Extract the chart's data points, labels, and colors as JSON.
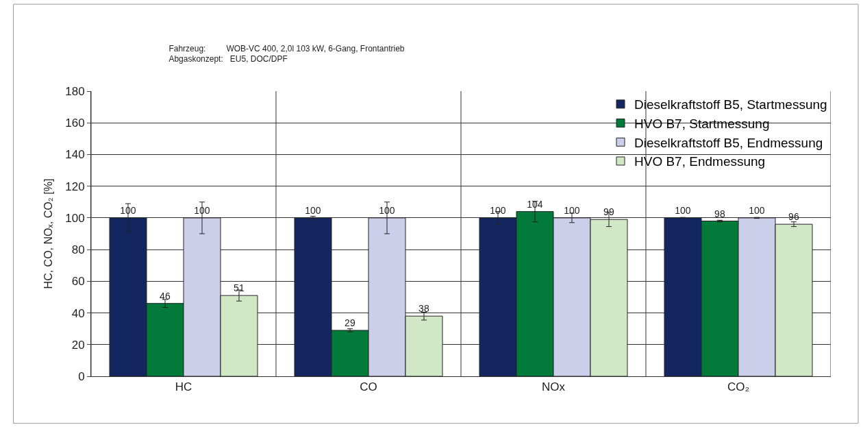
{
  "chart_data": {
    "type": "bar",
    "title": "Fahrzeug:         WOB-VC 400, 2,0l 103 kW, 6-Gang, Frontantrieb",
    "subtitle": "Abgaskonzept:   EU5, DOC/DPF",
    "ylabel": "HC, CO, NOₓ, CO₂ [%]",
    "categories": [
      "HC",
      "CO",
      "NOx",
      "CO₂"
    ],
    "series": [
      {
        "name": "Dieselkraftstoff B5, Startmessung",
        "color": "#13265f",
        "values": [
          100,
          100,
          100,
          100
        ],
        "errors": [
          9,
          1,
          4,
          0.3
        ]
      },
      {
        "name": "HVO B7, Startmessung",
        "color": "#017a3a",
        "values": [
          46,
          29,
          104,
          98
        ],
        "errors": [
          2.5,
          1,
          6.5,
          0.5
        ]
      },
      {
        "name": "Dieselkraftstoff B5, Endmessung",
        "color": "#cccfea",
        "values": [
          100,
          100,
          100,
          100
        ],
        "errors": [
          10,
          10,
          3,
          0.3
        ]
      },
      {
        "name": "HVO B7, Endmessung",
        "color": "#d0e8c6",
        "values": [
          51,
          38,
          99,
          96
        ],
        "errors": [
          3.5,
          2.5,
          4.5,
          1.5
        ]
      }
    ],
    "ylim": [
      0,
      180
    ],
    "yticks": [
      0,
      20,
      40,
      60,
      80,
      100,
      120,
      140,
      160,
      180
    ],
    "data_labels": true,
    "grid": true,
    "legend": "top right"
  }
}
